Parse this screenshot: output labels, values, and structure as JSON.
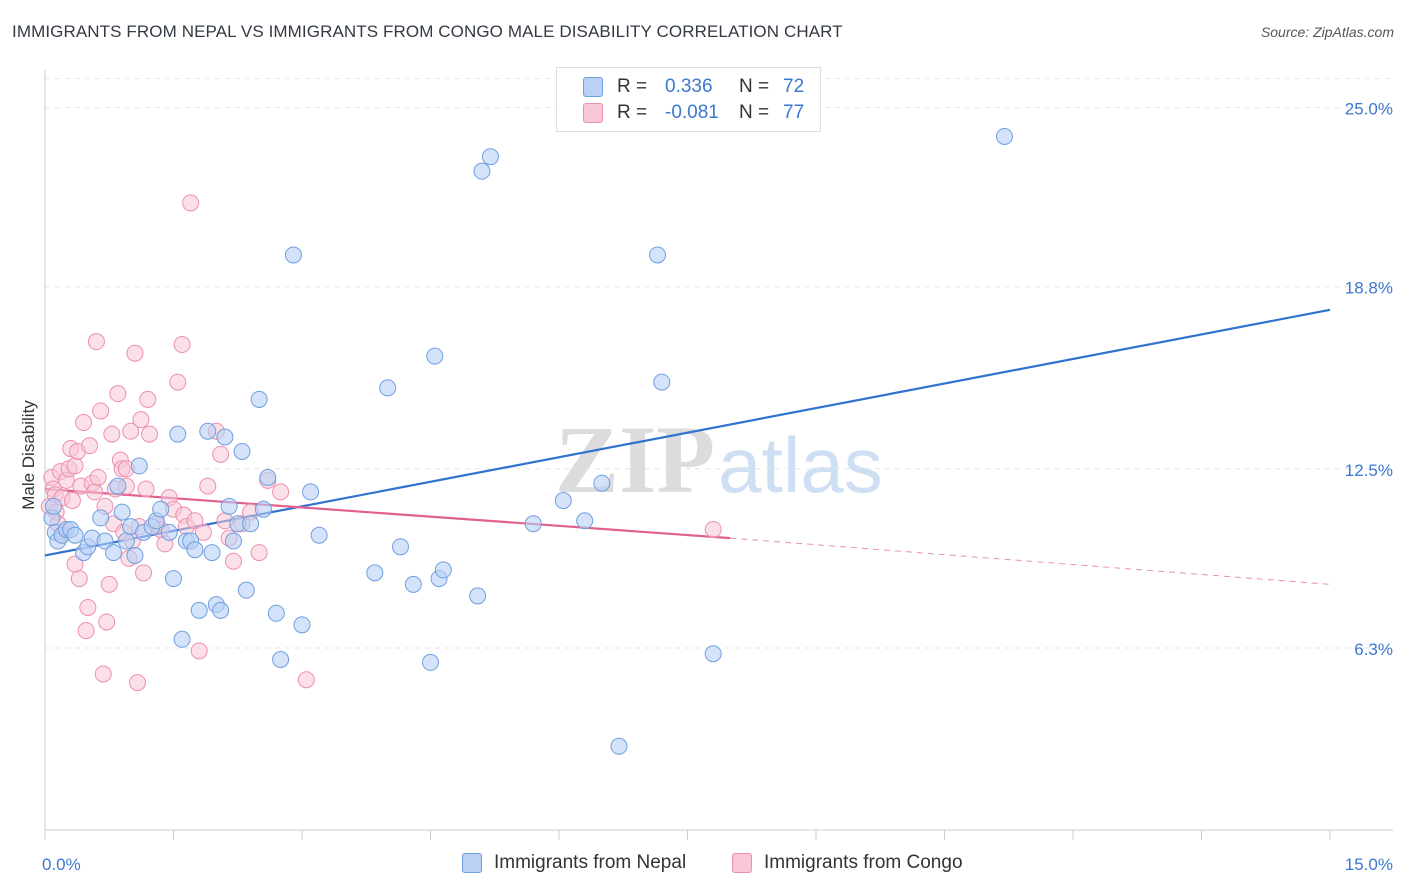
{
  "title": "IMMIGRANTS FROM NEPAL VS IMMIGRANTS FROM CONGO MALE DISABILITY CORRELATION CHART",
  "source": "Source: ZipAtlas.com",
  "watermark": {
    "zip": "ZIP",
    "atlas": "atlas"
  },
  "colors": {
    "nepal_fill": "#b8d1f5",
    "nepal_stroke": "#6f9fe0",
    "nepal_line": "#2f72d0",
    "congo_fill": "#f8c6d6",
    "congo_stroke": "#ec8fb0",
    "congo_line": "#e06090",
    "axis_label": "#3b78d0",
    "grid": "#e6e6e6"
  },
  "legend": {
    "nepal": {
      "r_label": "R =",
      "r_value": "0.336",
      "n_label": "N =",
      "n_value": "72"
    },
    "congo": {
      "r_label": "R =",
      "r_value": "-0.081",
      "n_label": "N =",
      "n_value": "77"
    }
  },
  "chart_data": {
    "type": "scatter",
    "title": "IMMIGRANTS FROM NEPAL VS IMMIGRANTS FROM CONGO MALE DISABILITY CORRELATION CHART",
    "xlabel": "",
    "ylabel": "Male Disability",
    "xlim": [
      0,
      15
    ],
    "ylim": [
      0,
      26.3
    ],
    "x_tick_labels": [
      "0.0%",
      "15.0%"
    ],
    "y_ticks": [
      6.3,
      12.5,
      18.8,
      25.0
    ],
    "y_tick_labels": [
      "6.3%",
      "12.5%",
      "18.8%",
      "25.0%"
    ],
    "grid": true,
    "legend_position": "top-center",
    "series": [
      {
        "name": "Immigrants from Nepal",
        "r": 0.336,
        "n": 72,
        "trend": {
          "x": [
            0,
            15
          ],
          "y": [
            9.5,
            18.0
          ]
        },
        "points": [
          [
            0.08,
            10.8
          ],
          [
            0.1,
            11.2
          ],
          [
            0.12,
            10.3
          ],
          [
            0.15,
            10.0
          ],
          [
            0.2,
            10.2
          ],
          [
            0.25,
            10.4
          ],
          [
            0.3,
            10.4
          ],
          [
            0.35,
            10.2
          ],
          [
            0.45,
            9.6
          ],
          [
            0.5,
            9.8
          ],
          [
            0.55,
            10.1
          ],
          [
            0.65,
            10.8
          ],
          [
            0.7,
            10.0
          ],
          [
            0.8,
            9.6
          ],
          [
            0.85,
            11.9
          ],
          [
            0.9,
            11.0
          ],
          [
            0.95,
            10.0
          ],
          [
            1.0,
            10.5
          ],
          [
            1.05,
            9.5
          ],
          [
            1.1,
            12.6
          ],
          [
            1.15,
            10.3
          ],
          [
            1.25,
            10.5
          ],
          [
            1.3,
            10.7
          ],
          [
            1.35,
            11.1
          ],
          [
            1.45,
            10.3
          ],
          [
            1.5,
            8.7
          ],
          [
            1.55,
            13.7
          ],
          [
            1.6,
            6.6
          ],
          [
            1.65,
            10.0
          ],
          [
            1.7,
            10.0
          ],
          [
            1.75,
            9.7
          ],
          [
            1.8,
            7.6
          ],
          [
            1.9,
            13.8
          ],
          [
            1.95,
            9.6
          ],
          [
            2.0,
            7.8
          ],
          [
            2.05,
            7.6
          ],
          [
            2.1,
            13.6
          ],
          [
            2.15,
            11.2
          ],
          [
            2.2,
            10.0
          ],
          [
            2.25,
            10.6
          ],
          [
            2.3,
            13.1
          ],
          [
            2.35,
            8.3
          ],
          [
            2.4,
            10.6
          ],
          [
            2.5,
            14.9
          ],
          [
            2.55,
            11.1
          ],
          [
            2.6,
            12.2
          ],
          [
            2.7,
            7.5
          ],
          [
            2.75,
            5.9
          ],
          [
            2.9,
            19.9
          ],
          [
            3.0,
            7.1
          ],
          [
            3.1,
            11.7
          ],
          [
            3.2,
            10.2
          ],
          [
            3.85,
            8.9
          ],
          [
            4.0,
            15.3
          ],
          [
            4.15,
            9.8
          ],
          [
            4.3,
            8.5
          ],
          [
            4.5,
            5.8
          ],
          [
            4.55,
            16.4
          ],
          [
            4.6,
            8.7
          ],
          [
            4.65,
            9.0
          ],
          [
            5.05,
            8.1
          ],
          [
            5.1,
            22.8
          ],
          [
            5.2,
            23.3
          ],
          [
            5.7,
            10.6
          ],
          [
            6.05,
            11.4
          ],
          [
            6.3,
            10.7
          ],
          [
            6.5,
            12.0
          ],
          [
            7.15,
            19.9
          ],
          [
            7.2,
            15.5
          ],
          [
            7.8,
            6.1
          ],
          [
            6.7,
            2.9
          ],
          [
            11.2,
            24.0
          ]
        ]
      },
      {
        "name": "Immigrants from Congo",
        "r": -0.081,
        "n": 77,
        "trend": {
          "x": [
            0,
            8.0
          ],
          "y": [
            11.8,
            10.1
          ]
        },
        "trend_dashed": {
          "x": [
            8.0,
            15
          ],
          "y": [
            10.1,
            8.5
          ]
        },
        "points": [
          [
            0.05,
            11.2
          ],
          [
            0.08,
            12.2
          ],
          [
            0.1,
            11.8
          ],
          [
            0.12,
            11.6
          ],
          [
            0.13,
            11.0
          ],
          [
            0.15,
            10.6
          ],
          [
            0.18,
            12.4
          ],
          [
            0.2,
            11.5
          ],
          [
            0.22,
            10.3
          ],
          [
            0.25,
            12.1
          ],
          [
            0.28,
            12.5
          ],
          [
            0.3,
            13.2
          ],
          [
            0.32,
            11.4
          ],
          [
            0.35,
            12.6
          ],
          [
            0.38,
            13.1
          ],
          [
            0.4,
            8.7
          ],
          [
            0.42,
            11.9
          ],
          [
            0.45,
            14.1
          ],
          [
            0.48,
            6.9
          ],
          [
            0.5,
            7.7
          ],
          [
            0.52,
            13.3
          ],
          [
            0.55,
            12.0
          ],
          [
            0.58,
            11.7
          ],
          [
            0.6,
            16.9
          ],
          [
            0.62,
            12.2
          ],
          [
            0.65,
            14.5
          ],
          [
            0.68,
            5.4
          ],
          [
            0.7,
            11.2
          ],
          [
            0.72,
            7.2
          ],
          [
            0.75,
            8.5
          ],
          [
            0.78,
            13.7
          ],
          [
            0.8,
            10.6
          ],
          [
            0.82,
            11.8
          ],
          [
            0.85,
            15.1
          ],
          [
            0.88,
            12.8
          ],
          [
            0.9,
            12.5
          ],
          [
            0.92,
            10.3
          ],
          [
            0.95,
            11.9
          ],
          [
            0.98,
            9.4
          ],
          [
            1.0,
            13.8
          ],
          [
            1.02,
            10.0
          ],
          [
            1.05,
            16.5
          ],
          [
            1.08,
            5.1
          ],
          [
            1.1,
            10.5
          ],
          [
            1.12,
            14.2
          ],
          [
            1.15,
            8.9
          ],
          [
            1.18,
            11.8
          ],
          [
            1.2,
            14.9
          ],
          [
            1.22,
            13.7
          ],
          [
            1.3,
            10.6
          ],
          [
            1.35,
            10.4
          ],
          [
            1.4,
            9.9
          ],
          [
            1.45,
            11.5
          ],
          [
            1.5,
            11.1
          ],
          [
            1.55,
            15.5
          ],
          [
            1.6,
            16.8
          ],
          [
            1.62,
            10.9
          ],
          [
            1.65,
            10.5
          ],
          [
            1.7,
            21.7
          ],
          [
            1.75,
            10.7
          ],
          [
            1.8,
            6.2
          ],
          [
            1.85,
            10.3
          ],
          [
            1.9,
            11.9
          ],
          [
            2.0,
            13.8
          ],
          [
            2.05,
            13.0
          ],
          [
            2.1,
            10.7
          ],
          [
            2.15,
            10.1
          ],
          [
            2.2,
            9.3
          ],
          [
            2.3,
            10.6
          ],
          [
            2.4,
            11.0
          ],
          [
            2.5,
            9.6
          ],
          [
            2.6,
            12.1
          ],
          [
            2.75,
            11.7
          ],
          [
            3.05,
            5.2
          ],
          [
            0.95,
            12.5
          ],
          [
            0.35,
            9.2
          ],
          [
            7.8,
            10.4
          ]
        ]
      }
    ]
  },
  "bottom_legend": {
    "nepal_label": "Immigrants from Nepal",
    "congo_label": "Immigrants from Congo"
  },
  "y_axis_label": "Male Disability"
}
